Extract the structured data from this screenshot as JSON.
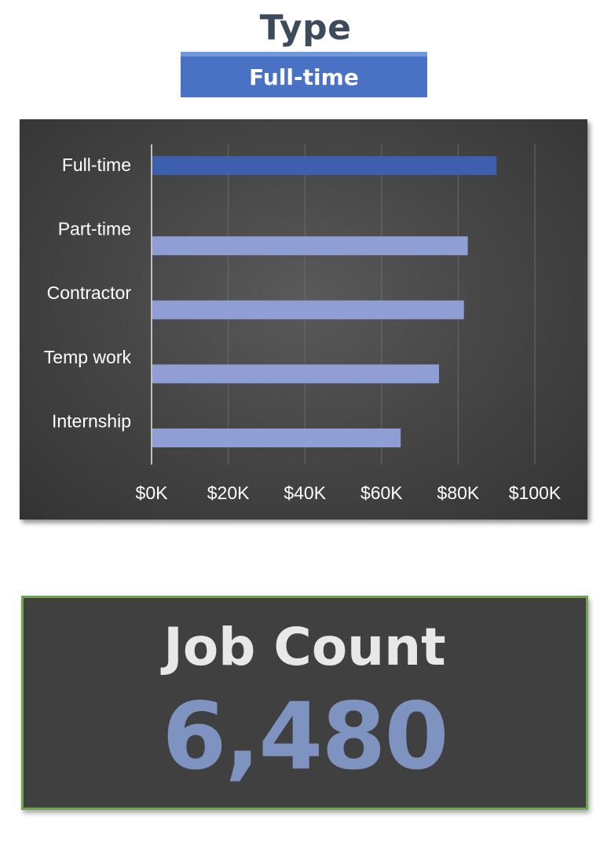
{
  "header": {
    "title": "Type",
    "slicer_value": "Full-time"
  },
  "colors": {
    "highlight_bar": "#3e5fad",
    "bar": "#8f9fd6",
    "gridline": "#6a6a6a",
    "axis_text": "#ffffff",
    "kpi_value": "#7f93c0",
    "kpi_border": "#6ea34f"
  },
  "chart_data": {
    "type": "bar",
    "orientation": "horizontal",
    "categories": [
      "Full-time",
      "Part-time",
      "Contractor",
      "Temp work",
      "Internship"
    ],
    "values": [
      90000,
      82500,
      81500,
      75000,
      65000
    ],
    "highlighted_category": "Full-time",
    "xlim": [
      0,
      100000
    ],
    "x_ticks": [
      0,
      20000,
      40000,
      60000,
      80000,
      100000
    ],
    "x_tick_labels": [
      "$0K",
      "$20K",
      "$40K",
      "$60K",
      "$80K",
      "$100K"
    ],
    "grid": true,
    "legend": "none"
  },
  "kpi": {
    "label": "Job Count",
    "value": "6,480"
  }
}
